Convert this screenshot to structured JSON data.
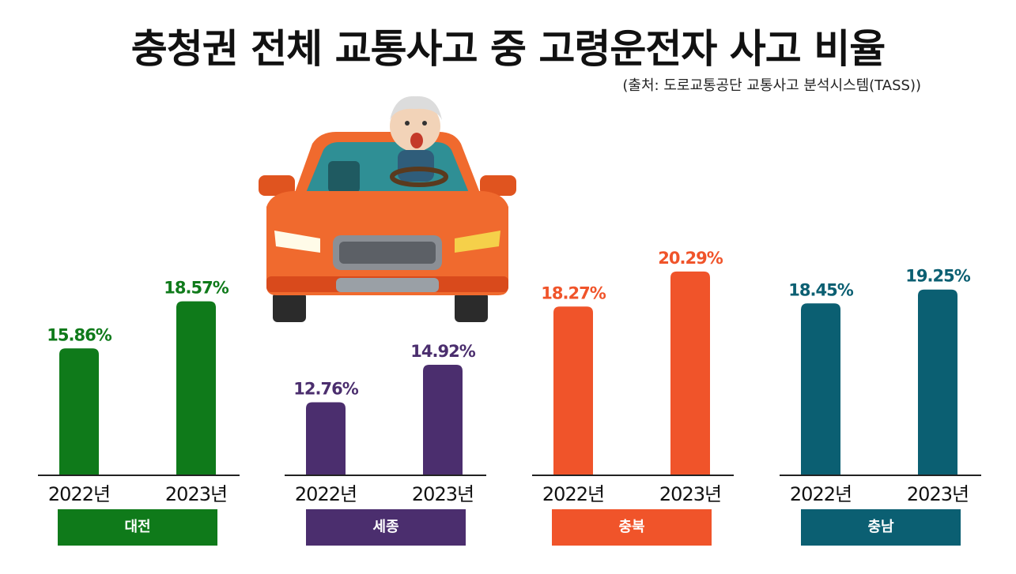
{
  "title": "충청권 전체 교통사고 중 고령운전자 사고 비율",
  "source": "(출처: 도로교통공단 교통사고 분석시스템(TASS))",
  "colors": {
    "대전": "#0f7a1a",
    "세종": "#4b2e6e",
    "충북": "#f0542a",
    "충남": "#0b5f72"
  },
  "chart_data": {
    "type": "bar",
    "categories": [
      "2022년",
      "2023년"
    ],
    "groups": [
      {
        "name": "대전",
        "values": [
          15.86,
          18.57
        ],
        "labels": [
          "15.86%",
          "18.57%"
        ]
      },
      {
        "name": "세종",
        "values": [
          12.76,
          14.92
        ],
        "labels": [
          "12.76%",
          "14.92%"
        ]
      },
      {
        "name": "충북",
        "values": [
          18.27,
          20.29
        ],
        "labels": [
          "18.27%",
          "20.29%"
        ]
      },
      {
        "name": "충남",
        "values": [
          18.45,
          19.25
        ],
        "labels": [
          "18.45%",
          "19.25%"
        ]
      }
    ]
  }
}
